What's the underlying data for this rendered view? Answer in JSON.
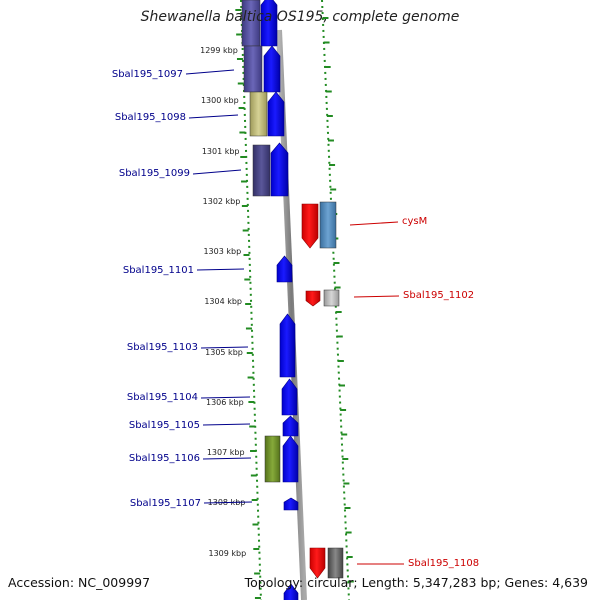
{
  "title": "Shewanella baltica OS195, complete genome",
  "accession": "Accession: NC_009997",
  "topology": "Topology: circular; Length: 5,347,283 bp; Genes: 4,639",
  "colors": {
    "forward_cds": "#0000ee",
    "reverse_cds": "#ee0000",
    "label_forward": "#00008b",
    "label_reverse": "#cc0000",
    "tick_dots": "#228b22",
    "backbone": "#888888"
  },
  "ticks": [
    "1299 kbp",
    "1300 kbp",
    "1301 kbp",
    "1302 kbp",
    "1303 kbp",
    "1304 kbp",
    "1305 kbp",
    "1306 kbp",
    "1307 kbp",
    "1308 kbp",
    "1309 kbp"
  ],
  "genes": [
    {
      "label": "Sbal195_1097",
      "strand": "forward",
      "cog_color": "#5a55a5"
    },
    {
      "label": "Sbal195_1098",
      "strand": "forward",
      "cog_color": "#bfbb7a"
    },
    {
      "label": "Sbal195_1099",
      "strand": "forward",
      "cog_color": "#4a4888"
    },
    {
      "label": "cysM",
      "strand": "reverse",
      "cog_color": "#4682b4"
    },
    {
      "label": "Sbal195_1101",
      "strand": "forward",
      "cog_color": ""
    },
    {
      "label": "Sbal195_1102",
      "strand": "reverse",
      "cog_color": "#bbbbbb"
    },
    {
      "label": "Sbal195_1103",
      "strand": "forward",
      "cog_color": ""
    },
    {
      "label": "Sbal195_1104",
      "strand": "forward",
      "cog_color": ""
    },
    {
      "label": "Sbal195_1105",
      "strand": "forward",
      "cog_color": ""
    },
    {
      "label": "Sbal195_1106",
      "strand": "forward",
      "cog_color": "#6b8e23"
    },
    {
      "label": "Sbal195_1107",
      "strand": "forward",
      "cog_color": ""
    },
    {
      "label": "Sbal195_1108",
      "strand": "reverse",
      "cog_color": "#666666"
    }
  ]
}
